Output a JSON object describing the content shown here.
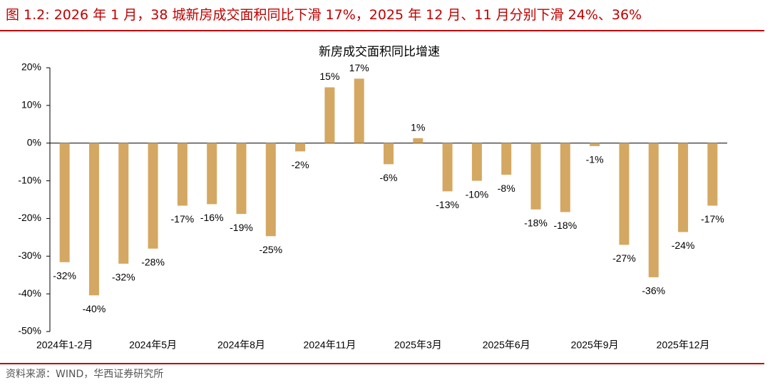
{
  "header": {
    "title": "图 1.2:  2026 年 1 月，38 城新房成交面积同比下滑 17%，2025 年 12 月、11 月分别下滑 24%、36%"
  },
  "footer": {
    "source": "资料来源：WIND，华西证券研究所"
  },
  "chart_data": {
    "type": "bar",
    "title": "新房成交面积同比增速",
    "categories": [
      "2024年1-2月",
      null,
      null,
      "2024年5月",
      null,
      null,
      "2024年8月",
      null,
      null,
      "2024年11月",
      null,
      null,
      "2025年3月",
      null,
      null,
      "2025年6月",
      null,
      null,
      "2025年9月",
      null,
      null,
      "2025年12月",
      null
    ],
    "values": [
      -31.6,
      -40.4,
      -32,
      -28,
      -16.6,
      -16.2,
      -18.8,
      -24.7,
      -2.2,
      14.8,
      17.1,
      -5.6,
      1.3,
      -12.8,
      -10,
      -8.4,
      -17.6,
      -18.3,
      -0.8,
      -27,
      -35.6,
      -23.6,
      -16.6
    ],
    "value_labels": [
      "-32%",
      "-40%",
      "-32%",
      "-28%",
      "-17%",
      "-16%",
      "-19%",
      "-25%",
      "-2%",
      "15%",
      "17%",
      "-6%",
      "1%",
      "-13%",
      "-10%",
      "-8%",
      "-18%",
      "-18%",
      "-1%",
      "-27%",
      "-36%",
      "-24%",
      "-17%"
    ],
    "color": "#d4a862",
    "ylim": [
      -50,
      20
    ],
    "yticks": [
      {
        "value": -50,
        "label": "-50%"
      },
      {
        "value": -40,
        "label": "-40%"
      },
      {
        "value": -30,
        "label": "-30%"
      },
      {
        "value": -20,
        "label": "-20%"
      },
      {
        "value": -10,
        "label": "-10%"
      },
      {
        "value": 0,
        "label": "0%"
      },
      {
        "value": 10,
        "label": "10%"
      },
      {
        "value": 20,
        "label": "20%"
      }
    ],
    "grid": false
  }
}
